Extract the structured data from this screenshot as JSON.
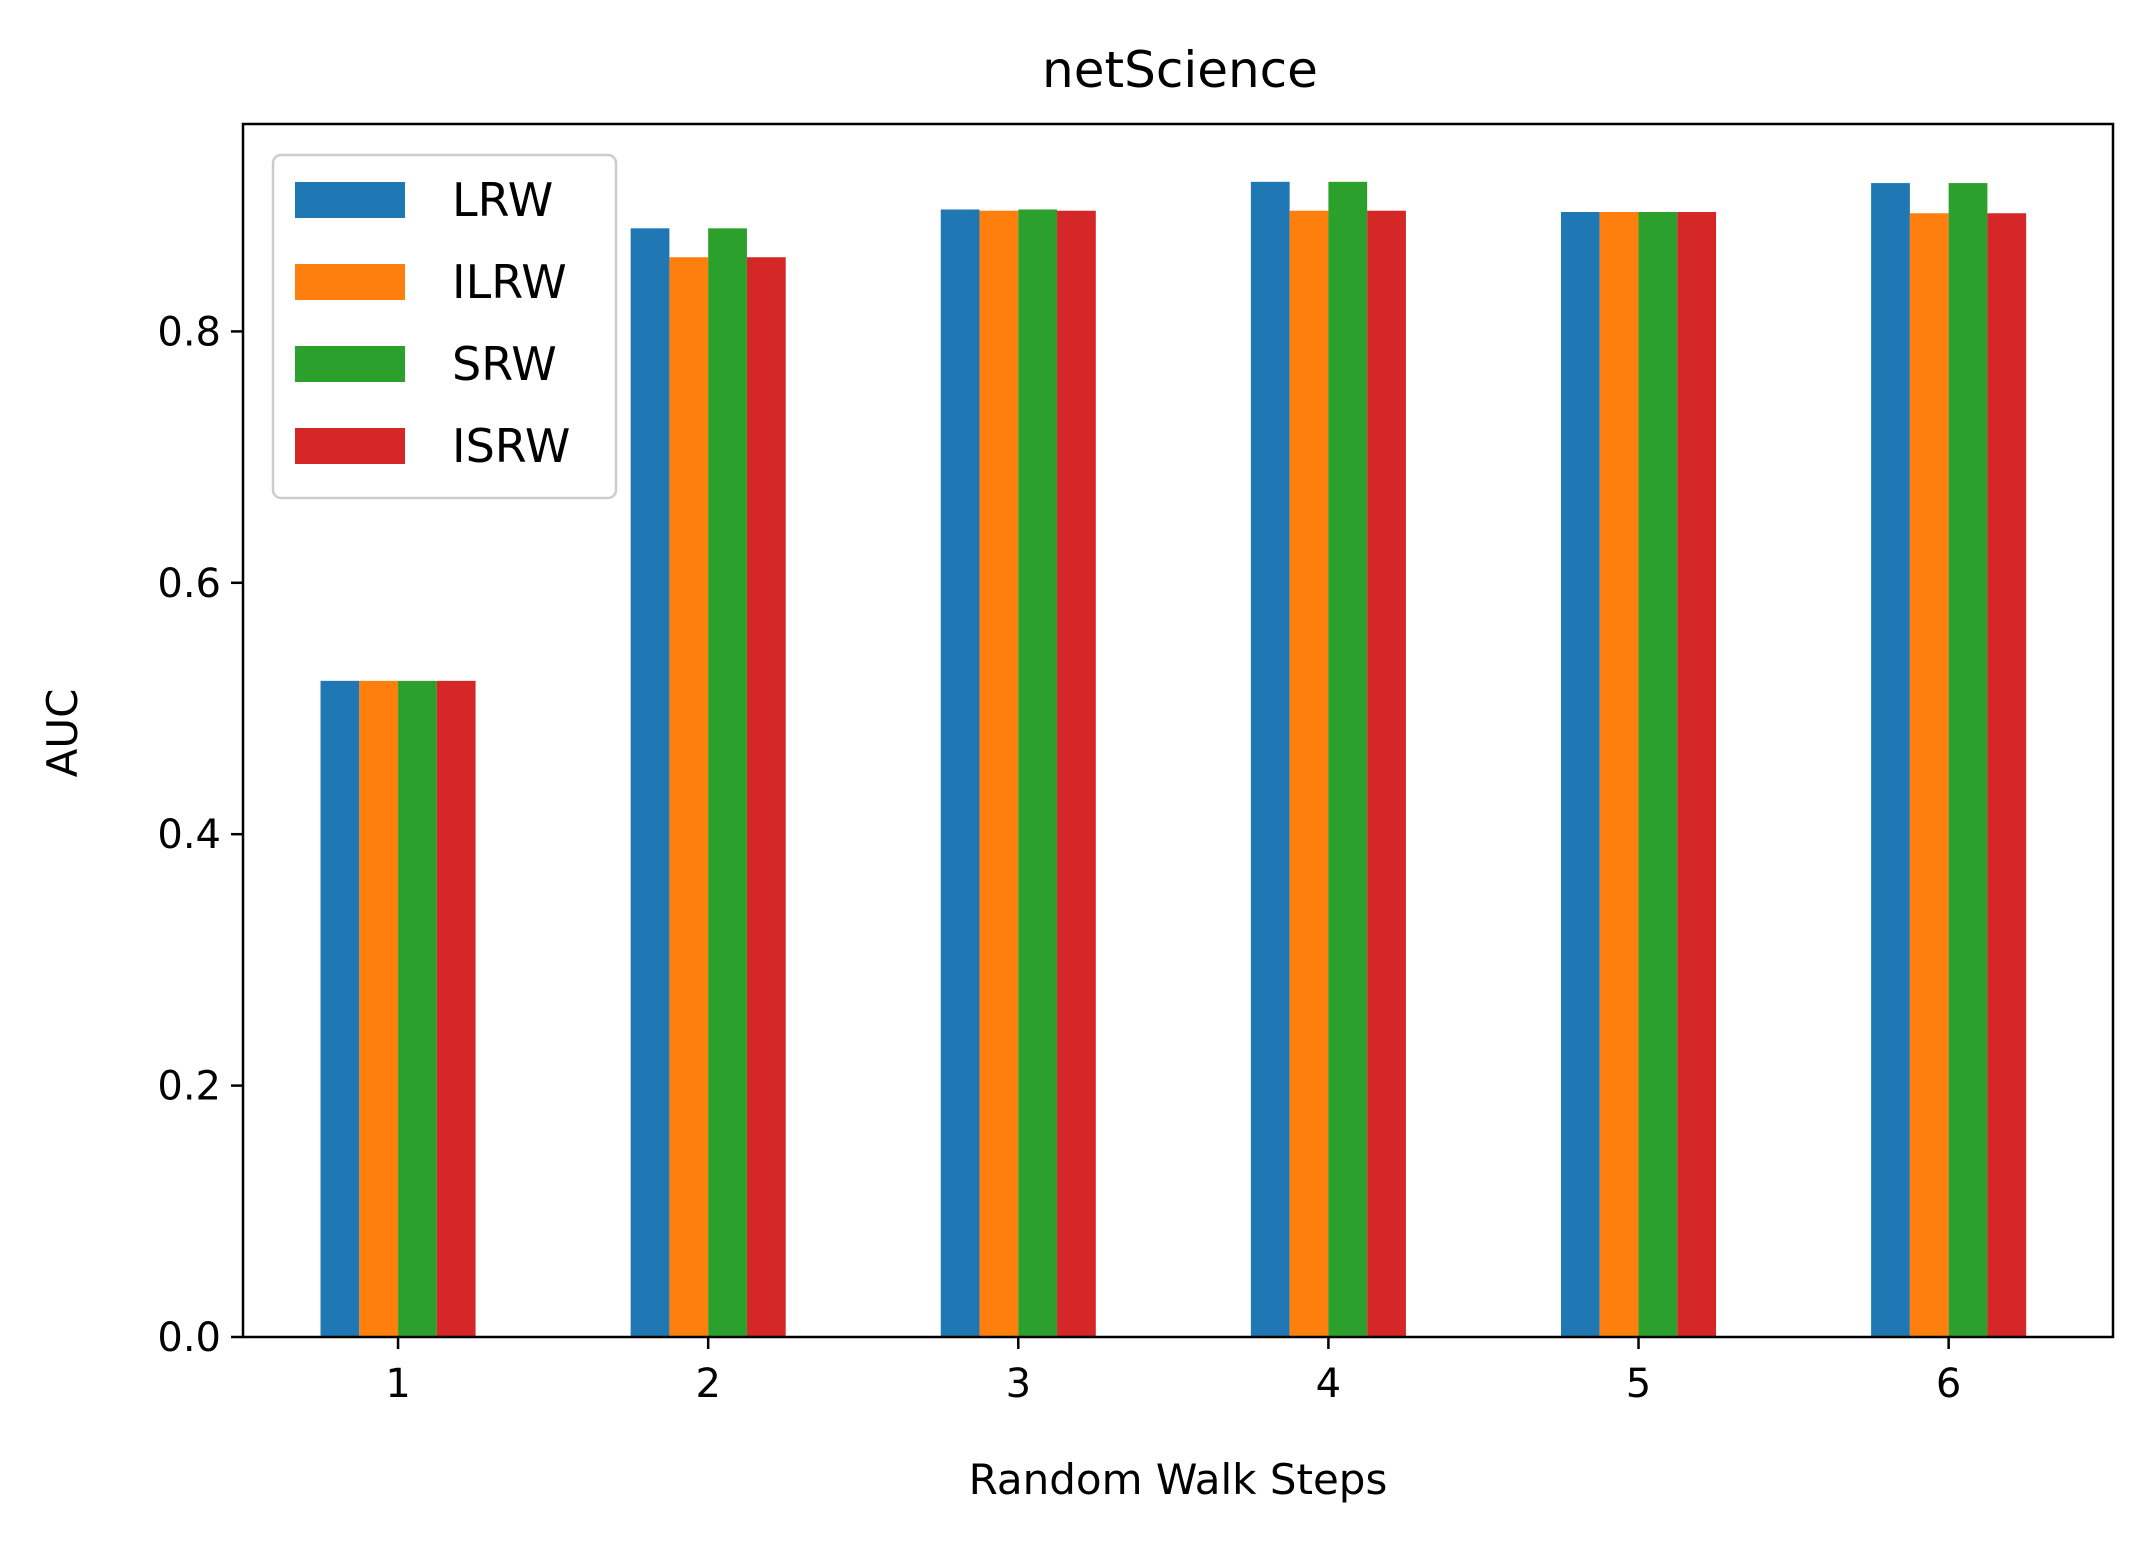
{
  "chart_data": {
    "type": "bar",
    "title": "netScience",
    "xlabel": "Random Walk Steps",
    "ylabel": "AUC",
    "categories": [
      "1",
      "2",
      "3",
      "4",
      "5",
      "6"
    ],
    "ylim": [
      0,
      0.965
    ],
    "yticks": [
      "0.0",
      "0.2",
      "0.4",
      "0.6",
      "0.8"
    ],
    "grid": false,
    "legend_position": "top-left",
    "series": [
      {
        "name": "LRW",
        "color": "#1f77b4",
        "values": [
          0.522,
          0.882,
          0.897,
          0.919,
          0.895,
          0.918
        ]
      },
      {
        "name": "ILRW",
        "color": "#ff7f0e",
        "values": [
          0.522,
          0.859,
          0.896,
          0.896,
          0.895,
          0.894
        ]
      },
      {
        "name": "SRW",
        "color": "#2ca02c",
        "values": [
          0.522,
          0.882,
          0.897,
          0.919,
          0.895,
          0.918
        ]
      },
      {
        "name": "ISRW",
        "color": "#d62728",
        "values": [
          0.522,
          0.859,
          0.896,
          0.896,
          0.895,
          0.894
        ]
      }
    ]
  }
}
